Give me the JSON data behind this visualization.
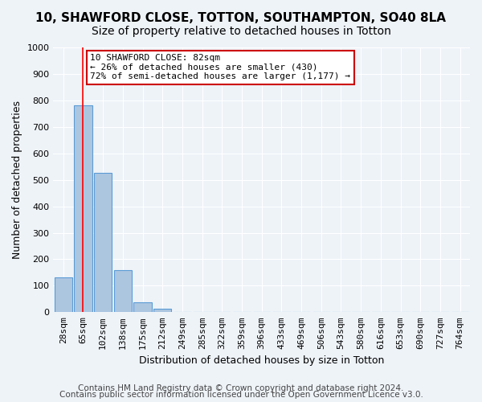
{
  "title": "10, SHAWFORD CLOSE, TOTTON, SOUTHAMPTON, SO40 8LA",
  "subtitle": "Size of property relative to detached houses in Totton",
  "xlabel": "Distribution of detached houses by size in Totton",
  "ylabel": "Number of detached properties",
  "bin_labels": [
    "28sqm",
    "65sqm",
    "102sqm",
    "138sqm",
    "175sqm",
    "212sqm",
    "249sqm",
    "285sqm",
    "322sqm",
    "359sqm",
    "396sqm",
    "433sqm",
    "469sqm",
    "506sqm",
    "543sqm",
    "580sqm",
    "616sqm",
    "653sqm",
    "690sqm",
    "727sqm",
    "764sqm"
  ],
  "bar_heights": [
    130,
    780,
    525,
    158,
    37,
    14,
    0,
    0,
    0,
    0,
    0,
    0,
    0,
    0,
    0,
    0,
    0,
    0,
    0,
    0,
    0
  ],
  "bar_color": "#adc6e0",
  "bar_edge_color": "#5b9bd5",
  "property_bin_index": 1,
  "annotation_text": "10 SHAWFORD CLOSE: 82sqm\n← 26% of detached houses are smaller (430)\n72% of semi-detached houses are larger (1,177) →",
  "annotation_box_color": "#ffffff",
  "annotation_box_edge": "#cc0000",
  "ylim": [
    0,
    1000
  ],
  "yticks": [
    0,
    100,
    200,
    300,
    400,
    500,
    600,
    700,
    800,
    900,
    1000
  ],
  "footer_line1": "Contains HM Land Registry data © Crown copyright and database right 2024.",
  "footer_line2": "Contains public sector information licensed under the Open Government Licence v3.0.",
  "bg_color": "#eef3f8",
  "plot_bg_color": "#eef3f8",
  "grid_color": "#ffffff",
  "title_fontsize": 11,
  "subtitle_fontsize": 10,
  "axis_label_fontsize": 9,
  "tick_fontsize": 8,
  "footer_fontsize": 7.5
}
